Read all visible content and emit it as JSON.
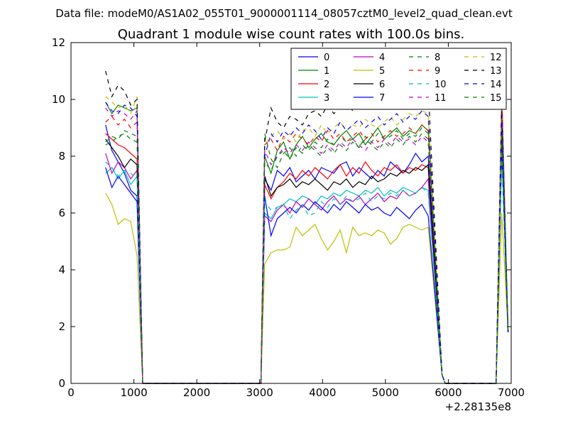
{
  "header": {
    "data_file": "Data file: modeM0/AS1A02_055T01_9000001114_08057cztM0_level2_quad_clean.evt"
  },
  "chart_data": {
    "type": "line",
    "title": "Quadrant 1 module wise count rates with 100.0s bins.",
    "xlabel": "",
    "ylabel": "",
    "x_offset_label": "+2.28135e8",
    "xlim": [
      0,
      7000
    ],
    "ylim": [
      0,
      12
    ],
    "x_ticks": [
      0,
      1000,
      2000,
      3000,
      4000,
      5000,
      6000,
      7000
    ],
    "y_ticks": [
      0,
      2,
      4,
      6,
      8,
      10,
      12
    ],
    "x_tick_labels": [
      "0",
      "1000",
      "2000",
      "3000",
      "4000",
      "5000",
      "6000",
      "7000"
    ],
    "y_tick_labels": [
      "0",
      "2",
      "4",
      "6",
      "8",
      "10",
      "12"
    ],
    "legend_location": "top-right",
    "colors": {
      "blue": "#0000ff",
      "green": "#008000",
      "red": "#ff0000",
      "cyan": "#00bfbf",
      "magenta": "#bf00bf",
      "olive": "#bfbf00",
      "black": "#000000"
    },
    "series": [
      {
        "name": "0",
        "color": "#0000ff",
        "dash": false,
        "seg1": [
          9.1,
          8.2,
          7.8,
          7.4,
          6.8,
          6.6
        ],
        "seg2": [
          7.2,
          6.8,
          7.5,
          7.3,
          7.6,
          7.1,
          7.3,
          7.5,
          7.2,
          7.6,
          7.5,
          7.4,
          7.7,
          7.8,
          7.3,
          7.6,
          7.4,
          7.2,
          7.5,
          7.3,
          7.8,
          7.6,
          7.4,
          7.7,
          8.1,
          7.8,
          8.0
        ],
        "end": 9.0
      },
      {
        "name": "1",
        "color": "#008000",
        "dash": false,
        "seg1": [
          9.9,
          9.5,
          9.8,
          9.7,
          9.6,
          9.7
        ],
        "seg2": [
          8.0,
          7.4,
          8.2,
          8.5,
          7.9,
          8.4,
          8.7,
          8.3,
          8.6,
          8.8,
          8.5,
          8.4,
          8.7,
          8.9,
          8.6,
          8.8,
          8.4,
          8.7,
          9.0,
          8.6,
          8.8,
          9.0,
          8.7,
          8.9,
          8.8,
          9.1,
          8.9
        ],
        "end": 9.3
      },
      {
        "name": "2",
        "color": "#ff0000",
        "dash": false,
        "seg1": [
          8.8,
          8.6,
          8.4,
          8.3,
          8.1,
          7.9
        ],
        "seg2": [
          7.0,
          6.5,
          6.9,
          7.1,
          7.4,
          7.2,
          7.5,
          7.3,
          7.6,
          7.4,
          7.2,
          7.5,
          7.7,
          7.3,
          7.6,
          7.4,
          7.8,
          7.5,
          7.3,
          7.6,
          7.5,
          7.7,
          7.4,
          7.6,
          7.5,
          7.7,
          7.6
        ],
        "end": 8.6
      },
      {
        "name": "3",
        "color": "#00bfbf",
        "dash": false,
        "seg1": [
          7.4,
          7.6,
          7.2,
          7.5,
          7.0,
          7.3
        ],
        "seg2": [
          6.0,
          5.8,
          6.2,
          6.3,
          6.5,
          6.4,
          6.6,
          6.5,
          6.3,
          6.6,
          6.5,
          6.7,
          6.6,
          6.8,
          6.7,
          6.6,
          6.8,
          6.7,
          6.9,
          6.6,
          6.8,
          6.7,
          6.9,
          6.8,
          6.7,
          6.9,
          6.8
        ],
        "end": 8.1
      },
      {
        "name": "4",
        "color": "#bf00bf",
        "dash": false,
        "seg1": [
          8.1,
          7.4,
          7.8,
          7.6,
          7.2,
          7.5
        ],
        "seg2": [
          5.9,
          5.7,
          6.1,
          6.3,
          6.0,
          6.4,
          6.2,
          6.5,
          6.3,
          6.1,
          6.4,
          6.6,
          6.3,
          6.5,
          6.4,
          6.6,
          6.3,
          6.5,
          6.7,
          6.4,
          6.6,
          6.5,
          6.8,
          6.6,
          6.7,
          6.9,
          7.2
        ],
        "end": 10.4
      },
      {
        "name": "5",
        "color": "#bfbf00",
        "dash": false,
        "seg1": [
          6.7,
          6.3,
          5.6,
          5.8,
          5.7,
          4.5
        ],
        "seg2": [
          4.2,
          4.6,
          4.7,
          4.7,
          4.8,
          5.5,
          5.2,
          5.4,
          5.6,
          5.1,
          4.7,
          5.0,
          5.4,
          4.6,
          5.5,
          5.2,
          5.3,
          5.2,
          5.4,
          5.3,
          4.9,
          5.1,
          5.5,
          5.6,
          5.5,
          5.4,
          5.5
        ],
        "end": 6.0
      },
      {
        "name": "6",
        "color": "#000000",
        "dash": false,
        "seg1": [
          8.6,
          8.3,
          8.0,
          7.6,
          7.9,
          7.7
        ],
        "seg2": [
          7.3,
          6.6,
          6.9,
          7.0,
          7.2,
          6.9,
          7.1,
          7.0,
          7.2,
          7.0,
          6.8,
          7.1,
          7.0,
          7.2,
          6.9,
          7.1,
          7.0,
          7.3,
          7.1,
          7.2,
          7.4,
          7.3,
          7.5,
          7.4,
          7.6,
          7.5,
          7.7
        ],
        "end": 8.7
      },
      {
        "name": "7",
        "color": "#0000ff",
        "dash": false,
        "seg1": [
          7.6,
          6.9,
          7.3,
          7.0,
          6.7,
          6.4
        ],
        "seg2": [
          6.6,
          5.2,
          5.8,
          6.0,
          6.2,
          6.0,
          6.3,
          6.1,
          6.4,
          6.2,
          6.0,
          6.3,
          6.1,
          6.4,
          6.2,
          6.0,
          6.3,
          6.1,
          6.2,
          6.0,
          5.9,
          6.2,
          6.0,
          5.8,
          6.1,
          6.3,
          5.9
        ],
        "end": 8.3
      },
      {
        "name": "8",
        "color": "#008000",
        "dash": true,
        "seg1": [
          8.4,
          8.5,
          8.7,
          8.8,
          8.6,
          8.5
        ],
        "seg2": [
          8.8,
          7.9,
          7.6,
          8.1,
          8.3,
          8.0,
          8.4,
          8.2,
          8.5,
          8.3,
          8.6,
          8.4,
          8.7,
          8.5,
          8.6,
          8.3,
          8.7,
          8.5,
          8.8,
          8.6,
          8.7,
          8.9,
          8.6,
          8.8,
          8.7,
          9.0,
          8.8
        ],
        "end": 9.4
      },
      {
        "name": "9",
        "color": "#ff0000",
        "dash": true,
        "seg1": [
          9.2,
          9.4,
          9.1,
          9.3,
          9.0,
          9.2
        ],
        "seg2": [
          8.4,
          8.6,
          8.2,
          8.7,
          8.5,
          8.8,
          8.6,
          8.4,
          8.7,
          8.5,
          8.9,
          8.6,
          8.8,
          8.5,
          8.7,
          8.9,
          8.6,
          8.8,
          8.5,
          8.7,
          8.9,
          8.7,
          8.8,
          9.0,
          8.8,
          9.1,
          8.9
        ],
        "end": 9.6
      },
      {
        "name": "10",
        "color": "#00bfbf",
        "dash": true,
        "seg1": [
          7.8,
          7.6,
          7.3,
          7.5,
          7.4,
          7.2
        ],
        "seg2": [
          6.4,
          6.1,
          6.2,
          6.3,
          5.8,
          6.1,
          6.3,
          5.9,
          6.0,
          6.4,
          6.2,
          6.5,
          6.3,
          6.6,
          6.4,
          6.5,
          6.7,
          6.4,
          6.6,
          6.5,
          6.7,
          6.6,
          6.8,
          6.6,
          6.7,
          6.9,
          6.7
        ],
        "end": 8.2
      },
      {
        "name": "11",
        "color": "#bf00bf",
        "dash": true,
        "seg1": [
          9.7,
          9.4,
          9.6,
          9.5,
          9.3,
          9.6
        ],
        "seg2": [
          8.2,
          7.7,
          8.0,
          8.3,
          8.1,
          8.4,
          8.2,
          8.5,
          8.3,
          8.1,
          8.4,
          8.2,
          8.5,
          8.3,
          8.6,
          8.4,
          8.2,
          8.5,
          8.3,
          8.6,
          8.4,
          8.7,
          8.5,
          8.6,
          8.4,
          8.7,
          8.5
        ],
        "end": 9.9
      },
      {
        "name": "12",
        "color": "#bfbf00",
        "dash": true,
        "seg1": [
          10.1,
          9.9,
          9.7,
          9.8,
          9.5,
          10.1
        ],
        "seg2": [
          8.4,
          8.7,
          8.9,
          8.6,
          8.8,
          8.5,
          8.9,
          9.0,
          8.7,
          9.1,
          8.8,
          9.0,
          9.2,
          8.9,
          9.1,
          9.0,
          9.3,
          9.1,
          9.0,
          9.2,
          9.4,
          9.1,
          9.3,
          9.5,
          9.4,
          9.6,
          9.5
        ],
        "end": 10.0
      },
      {
        "name": "13",
        "color": "#000000",
        "dash": true,
        "seg1": [
          11.0,
          10.1,
          10.5,
          10.3,
          9.8,
          10.0
        ],
        "seg2": [
          8.5,
          9.7,
          9.2,
          9.0,
          9.4,
          9.3,
          9.1,
          9.5,
          9.6,
          9.4,
          9.8,
          9.5,
          9.7,
          9.9,
          9.6,
          9.8,
          9.7,
          10.0,
          9.8,
          9.9,
          10.1,
          9.9,
          10.2,
          10.0,
          10.1,
          10.3,
          10.4
        ],
        "end": 9.6
      },
      {
        "name": "14",
        "color": "#0000ff",
        "dash": true,
        "seg1": [
          9.9,
          9.6,
          9.5,
          9.8,
          9.7,
          9.4
        ],
        "seg2": [
          8.0,
          8.8,
          8.5,
          8.9,
          8.7,
          9.0,
          8.8,
          9.1,
          8.9,
          8.6,
          9.0,
          8.8,
          9.2,
          8.9,
          9.1,
          9.3,
          9.0,
          9.2,
          9.4,
          9.1,
          9.3,
          9.5,
          9.2,
          9.4,
          9.3,
          9.6,
          9.4
        ],
        "end": 9.2
      },
      {
        "name": "15",
        "color": "#008000",
        "dash": true,
        "seg1": [
          8.5,
          8.7,
          8.6,
          8.9,
          8.8,
          8.7
        ],
        "seg2": [
          7.8,
          7.5,
          8.0,
          8.2,
          7.9,
          8.3,
          8.1,
          8.4,
          8.2,
          8.0,
          8.3,
          8.1,
          8.4,
          8.2,
          8.5,
          8.3,
          8.6,
          8.4,
          8.2,
          8.5,
          8.3,
          8.6,
          8.4,
          8.7,
          8.5,
          8.8,
          8.6
        ],
        "end": 8.8
      }
    ],
    "segment_times": {
      "seg1_x": [
        550,
        650,
        750,
        850,
        950,
        1050
      ],
      "seg1_drop_x": 1140,
      "zero_x": [
        1140,
        3020
      ],
      "seg2_x_start": 3080,
      "seg2_x_step": 100,
      "seg2_drop_x": 5900,
      "zero_x_2": [
        5950,
        6740
      ],
      "spike_x": [
        6760,
        6850,
        6950
      ]
    }
  }
}
